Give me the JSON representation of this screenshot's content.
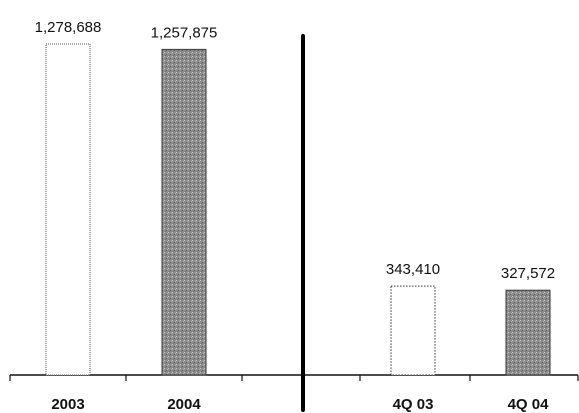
{
  "chart_data": {
    "type": "bar",
    "panels": [
      {
        "categories": [
          "2003",
          "2004"
        ],
        "values": [
          1278688,
          1257875
        ],
        "labels": [
          "1,278,688",
          "1,257,875"
        ],
        "fills": [
          "white",
          "gray-pattern"
        ]
      },
      {
        "categories": [
          "4Q 03",
          "4Q 04"
        ],
        "values": [
          343410,
          327572
        ],
        "labels": [
          "343,410",
          "327,572"
        ],
        "fills": [
          "white-dotted",
          "gray-pattern"
        ]
      }
    ],
    "ylim": [
      0,
      1300000
    ],
    "grid": false,
    "divider": true
  }
}
